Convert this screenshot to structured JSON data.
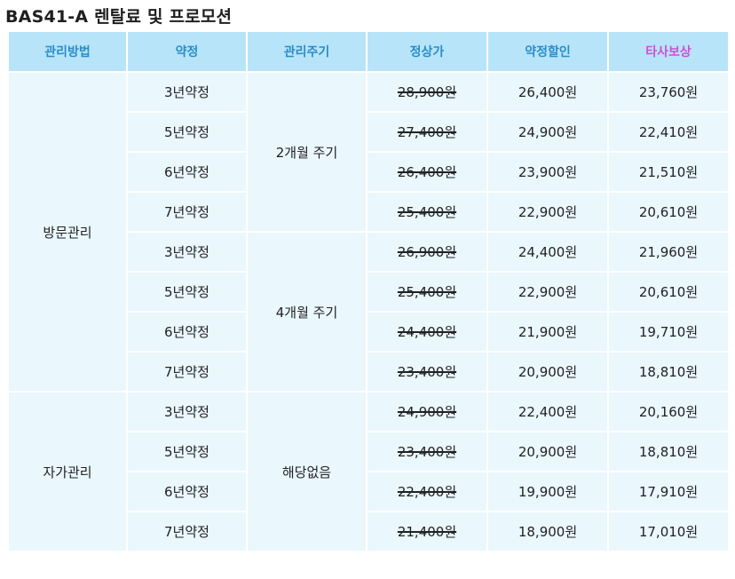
{
  "title": "BAS41-A 렌탈료 및 프로모션",
  "headers": [
    "관리방법",
    "약정",
    "관리주기",
    "정상가",
    "약정할인",
    "타사보상"
  ],
  "methods": [
    "방문관리",
    "자가관리"
  ],
  "cycles": [
    "2개월 주기",
    "4개월 주기",
    "해당없음"
  ],
  "rows": [
    {
      "term": "3년약정",
      "regular": "28,900원",
      "discount": "26,400원",
      "other": "23,760원"
    },
    {
      "term": "5년약정",
      "regular": "27,400원",
      "discount": "24,900원",
      "other": "22,410원"
    },
    {
      "term": "6년약정",
      "regular": "26,400원",
      "discount": "23,900원",
      "other": "21,510원"
    },
    {
      "term": "7년약정",
      "regular": "25,400원",
      "discount": "22,900원",
      "other": "20,610원"
    },
    {
      "term": "3년약정",
      "regular": "26,900원",
      "discount": "24,400원",
      "other": "21,960원"
    },
    {
      "term": "5년약정",
      "regular": "25,400원",
      "discount": "22,900원",
      "other": "20,610원"
    },
    {
      "term": "6년약정",
      "regular": "24,400원",
      "discount": "21,900원",
      "other": "19,710원"
    },
    {
      "term": "7년약정",
      "regular": "23,400원",
      "discount": "20,900원",
      "other": "18,810원"
    },
    {
      "term": "3년약정",
      "regular": "24,900원",
      "discount": "22,400원",
      "other": "20,160원"
    },
    {
      "term": "5년약정",
      "regular": "23,400원",
      "discount": "20,900원",
      "other": "18,810원"
    },
    {
      "term": "6년약정",
      "regular": "22,400원",
      "discount": "19,900원",
      "other": "17,910원"
    },
    {
      "term": "7년약정",
      "regular": "21,400원",
      "discount": "18,900원",
      "other": "17,010원"
    }
  ]
}
